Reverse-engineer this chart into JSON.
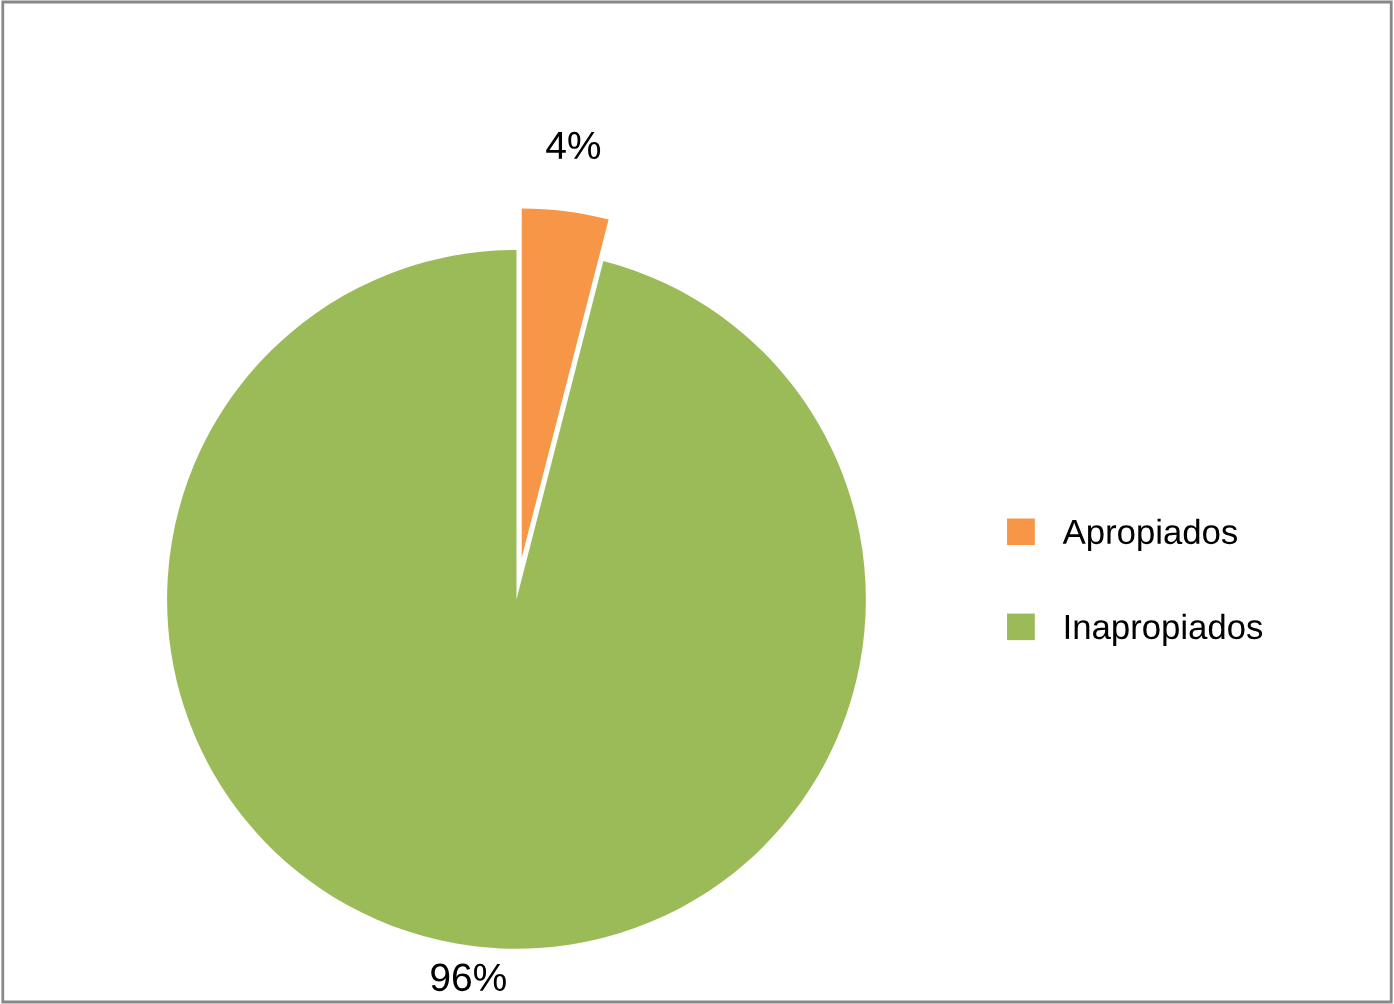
{
  "chart_data": {
    "type": "pie",
    "categories": [
      "Apropiados",
      "Inapropiados"
    ],
    "values": [
      4,
      96
    ],
    "colors": [
      "#f79646",
      "#9bbb59"
    ],
    "value_labels": [
      "4%",
      "96%"
    ],
    "legend": "right"
  }
}
